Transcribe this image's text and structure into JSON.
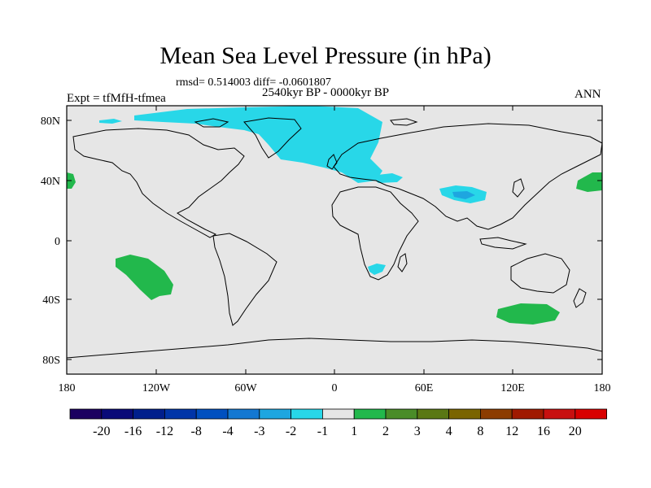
{
  "header": {
    "title": "Mean Sea Level Pressure (in hPa)",
    "stats": "rmsd= 0.514003 diff= -0.0601807",
    "period": "2540kyr BP - 0000kyr BP",
    "experiment": "Expt = tfMfH-tfmea",
    "season": "ANN"
  },
  "axes": {
    "y_labels": [
      "80N",
      "40N",
      "0",
      "40S",
      "80S"
    ],
    "x_labels": [
      "180",
      "120W",
      "60W",
      "0",
      "60E",
      "120E",
      "180"
    ]
  },
  "legend": {
    "labels": [
      "-20",
      "-16",
      "-12",
      "-8",
      "-4",
      "-3",
      "-2",
      "-1",
      "1",
      "2",
      "3",
      "4",
      "8",
      "12",
      "16",
      "20"
    ],
    "colors": [
      "#1b0060",
      "#0a0a78",
      "#001f8c",
      "#0035a8",
      "#0050c0",
      "#1478d2",
      "#1ea6e0",
      "#28d7e8",
      "#e6e6e6",
      "#22b84c",
      "#4a8c28",
      "#5a7814",
      "#7a6400",
      "#8c3c00",
      "#a01a00",
      "#c81010",
      "#d80000"
    ]
  },
  "colors": {
    "background": "#e6e6e6",
    "negative_1": "#28d7e8",
    "negative_2": "#1ea6e0",
    "positive_1": "#22b84c"
  }
}
